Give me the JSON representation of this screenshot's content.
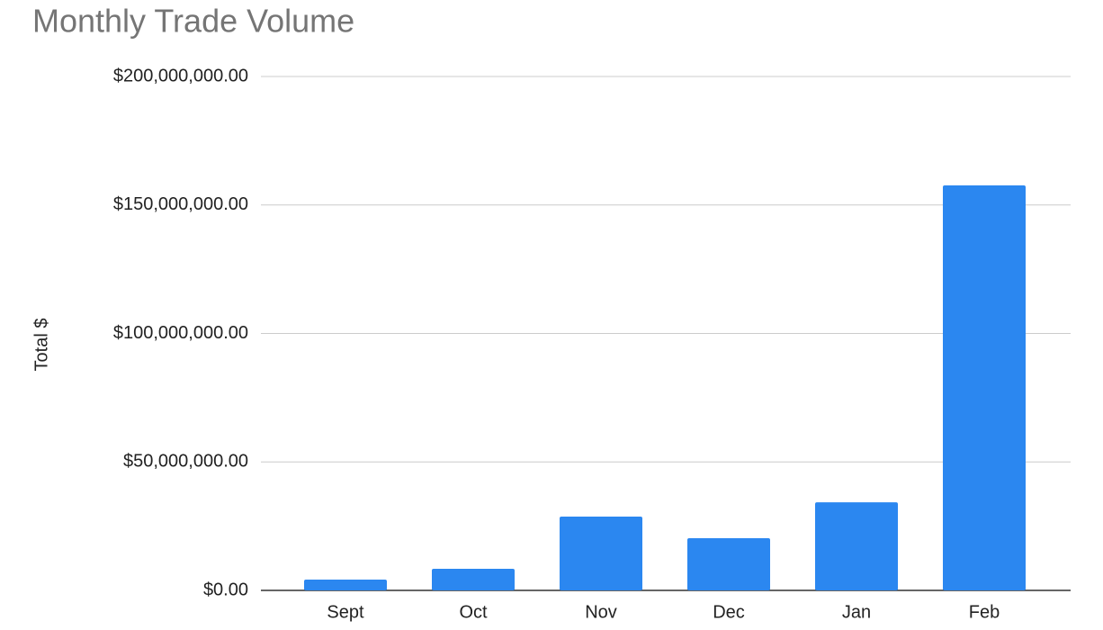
{
  "chart_data": {
    "type": "bar",
    "title": "Monthly Trade Volume",
    "y_label": "Total $",
    "categories": [
      "Sept",
      "Oct",
      "Nov",
      "Dec",
      "Jan",
      "Feb"
    ],
    "values": [
      4200000,
      8400000,
      28700000,
      20300000,
      34300000,
      157600000
    ],
    "color": "#2b87f0",
    "ylim": [
      0,
      200000000
    ],
    "yticks": [
      {
        "value": 0,
        "label": "$0.00"
      },
      {
        "value": 50000000,
        "label": "$50,000,000.00"
      },
      {
        "value": 100000000,
        "label": "$100,000,000.00"
      },
      {
        "value": 150000000,
        "label": "$150,000,000.00"
      },
      {
        "value": 200000000,
        "label": "$200,000,000.00"
      }
    ],
    "grid": true
  }
}
